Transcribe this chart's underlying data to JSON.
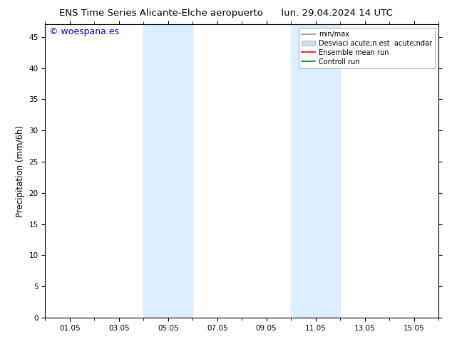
{
  "title_left": "ENS Time Series Alicante-Elche aeropuerto",
  "title_right": "lun. 29.04.2024 14 UTC",
  "ylabel": "Precipitation (mm/6h)",
  "ylim": [
    0,
    47
  ],
  "yticks": [
    0,
    5,
    10,
    15,
    20,
    25,
    30,
    35,
    40,
    45
  ],
  "xtick_labels": [
    "01.05",
    "03.05",
    "05.05",
    "07.05",
    "09.05",
    "11.05",
    "13.05",
    "15.05"
  ],
  "xtick_positions": [
    1,
    3,
    5,
    7,
    9,
    11,
    13,
    15
  ],
  "xlim": [
    0,
    16
  ],
  "shaded_regions": [
    {
      "xmin": 4.0,
      "xmax": 6.0,
      "color": "#ddeeff",
      "alpha": 1.0
    },
    {
      "xmin": 10.0,
      "xmax": 12.0,
      "color": "#ddeeff",
      "alpha": 1.0
    }
  ],
  "legend_entries": [
    {
      "label": "min/max",
      "color": "#999999",
      "type": "line"
    },
    {
      "label": "Desviaci acute;n est  acute;ndar",
      "color": "#cce0f0",
      "type": "patch"
    },
    {
      "label": "Ensemble mean run",
      "color": "#ff0000",
      "type": "line"
    },
    {
      "label": "Controll run",
      "color": "#008800",
      "type": "line"
    }
  ],
  "copyright_text": "© woespana.es",
  "copyright_color": "#0000cc",
  "background_color": "#ffffff",
  "title_fontsize": 9.5,
  "tick_fontsize": 7.5,
  "ylabel_fontsize": 8.5,
  "legend_fontsize": 7,
  "copyright_fontsize": 9
}
